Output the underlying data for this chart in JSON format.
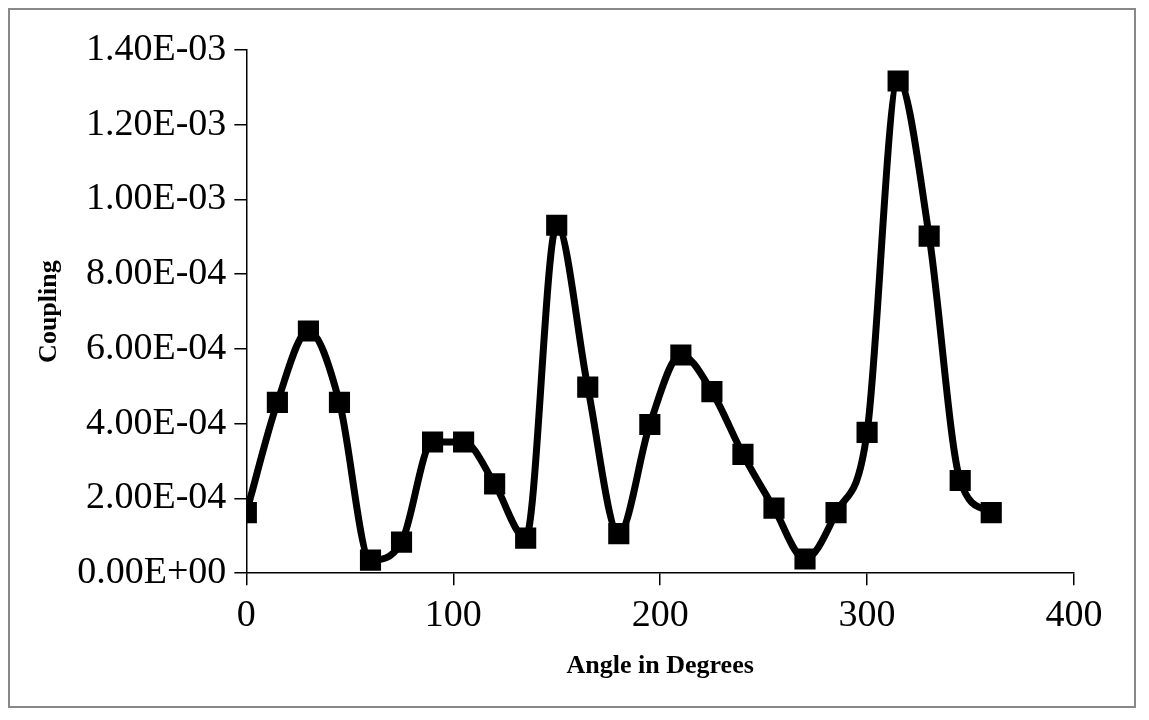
{
  "chart_data": {
    "type": "line",
    "xlabel": "Angle in Degrees",
    "ylabel": "Coupling",
    "x": [
      0,
      15,
      30,
      45,
      60,
      75,
      90,
      105,
      120,
      135,
      150,
      165,
      180,
      195,
      210,
      225,
      240,
      255,
      270,
      285,
      300,
      315,
      330,
      345,
      360
    ],
    "series": [
      {
        "color": "#000000",
        "values": [
          0.000162,
          0.000457,
          0.000648,
          0.000457,
          3.5e-05,
          8.3e-05,
          0.000351,
          0.000351,
          0.000239,
          9.4e-05,
          0.000931,
          0.000498,
          0.000106,
          0.000398,
          0.000584,
          0.000486,
          0.000318,
          0.000174,
          3.8e-05,
          0.000162,
          0.000377,
          0.001317,
          0.000902,
          0.000248,
          0.000162
        ]
      }
    ],
    "xlim": [
      0,
      400
    ],
    "xticks": [
      0,
      100,
      200,
      300,
      400
    ],
    "ylim": [
      0,
      0.0014
    ],
    "yticks": [
      {
        "value": 0,
        "label": "0.00E+00"
      },
      {
        "value": 0.0002,
        "label": "2.00E-04"
      },
      {
        "value": 0.0004,
        "label": "4.00E-04"
      },
      {
        "value": 0.0006,
        "label": "6.00E-04"
      },
      {
        "value": 0.0008,
        "label": "8.00E-04"
      },
      {
        "value": 0.001,
        "label": "1.00E-03"
      },
      {
        "value": 0.0012,
        "label": "1.20E-03"
      },
      {
        "value": 0.0014,
        "label": "1.40E-03"
      }
    ],
    "grid": false,
    "legend": false,
    "marker": "square",
    "line_style": "solid"
  }
}
